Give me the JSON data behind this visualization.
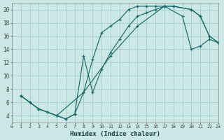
{
  "xlabel": "Humidex (Indice chaleur)",
  "bg_color": "#cce8e6",
  "grid_color": "#a8ccca",
  "line_color": "#1a6b6b",
  "xlim": [
    0,
    23
  ],
  "ylim": [
    3,
    21
  ],
  "xticks": [
    0,
    1,
    2,
    3,
    4,
    5,
    6,
    7,
    8,
    9,
    10,
    11,
    12,
    13,
    14,
    15,
    16,
    17,
    18,
    19,
    20,
    21,
    22,
    23
  ],
  "yticks": [
    4,
    6,
    8,
    10,
    12,
    14,
    16,
    18,
    20
  ],
  "curve1_x": [
    1,
    2,
    3,
    4,
    5,
    6,
    7,
    8,
    9,
    10,
    11,
    12,
    13,
    14,
    15,
    16,
    17,
    18,
    20,
    21,
    22,
    23
  ],
  "curve1_y": [
    7,
    6,
    5,
    4.5,
    4,
    3.5,
    4.2,
    13,
    7.5,
    11,
    13.5,
    15.5,
    17.5,
    19,
    19.5,
    20,
    20.5,
    20.5,
    20,
    19,
    16,
    15
  ],
  "curve2_x": [
    1,
    2,
    3,
    4,
    5,
    6,
    7,
    8,
    9,
    10,
    11,
    12,
    13,
    14,
    15,
    16,
    17,
    18,
    20,
    21,
    22,
    23
  ],
  "curve2_y": [
    7,
    6,
    5,
    4.5,
    4,
    3.5,
    4.2,
    7.5,
    12.5,
    16.5,
    17.5,
    18.5,
    20,
    20.5,
    20.5,
    20.5,
    20.5,
    20.5,
    20,
    19,
    16,
    15
  ],
  "curve3_x": [
    1,
    3,
    5,
    8,
    11,
    14,
    17,
    19,
    20,
    21,
    22,
    23
  ],
  "curve3_y": [
    7,
    5,
    4,
    7.5,
    13,
    17.5,
    20.5,
    19,
    14,
    14.5,
    15.5,
    15
  ]
}
